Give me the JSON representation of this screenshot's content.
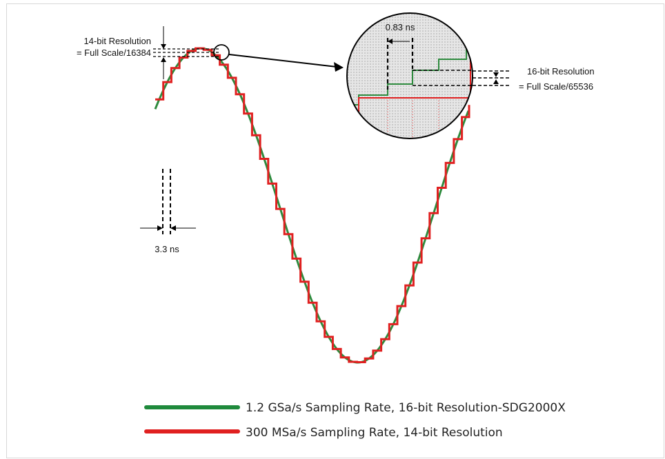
{
  "labels": {
    "res14_line1": "14-bit Resolution",
    "res14_line2": "= Full Scale/16384",
    "time_coarse": "3.3 ns",
    "time_fine": "0.83 ns",
    "res16_line1": "16-bit Resolution",
    "res16_line2": "= Full Scale/65536"
  },
  "legend": [
    {
      "label": "1.2 GSa/s Sampling Rate, 16-bit Resolution-SDG2000X",
      "color": "#1f8a3c"
    },
    {
      "label": "300 MSa/s Sampling Rate, 14-bit Resolution",
      "color": "#e02020"
    }
  ],
  "colors": {
    "smooth": "#2e8b3e",
    "stepped": "#e02020",
    "annotation": "#000000",
    "zoom_bg": "#d6d6d6"
  }
}
